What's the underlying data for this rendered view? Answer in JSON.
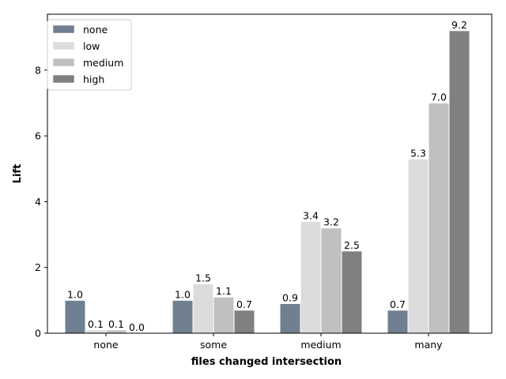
{
  "chart_data": {
    "type": "bar",
    "categories": [
      "none",
      "some",
      "medium",
      "many"
    ],
    "series": [
      {
        "name": "none",
        "color": "#708090",
        "values": [
          1.0,
          1.0,
          0.9,
          0.7
        ],
        "labels": [
          "1.0",
          "1.0",
          "0.9",
          "0.7"
        ]
      },
      {
        "name": "low",
        "color": "#DCDCDC",
        "values": [
          0.1,
          1.5,
          3.4,
          5.3
        ],
        "labels": [
          "0.1",
          "1.5",
          "3.4",
          "5.3"
        ]
      },
      {
        "name": "medium",
        "color": "#C0C0C0",
        "values": [
          0.1,
          1.1,
          3.2,
          7.0
        ],
        "labels": [
          "0.1",
          "1.1",
          "3.2",
          "7.0"
        ]
      },
      {
        "name": "high",
        "color": "#808080",
        "values": [
          0.0,
          0.7,
          2.5,
          9.2
        ],
        "labels": [
          "0.0",
          "0.7",
          "2.5",
          "9.2"
        ]
      }
    ],
    "xlabel": "files changed intersection",
    "ylabel": "Lift",
    "ylim": [
      0,
      9.7
    ],
    "yticks": [
      0,
      2,
      4,
      6,
      8
    ],
    "grid": false,
    "legend_position": "top-left"
  }
}
